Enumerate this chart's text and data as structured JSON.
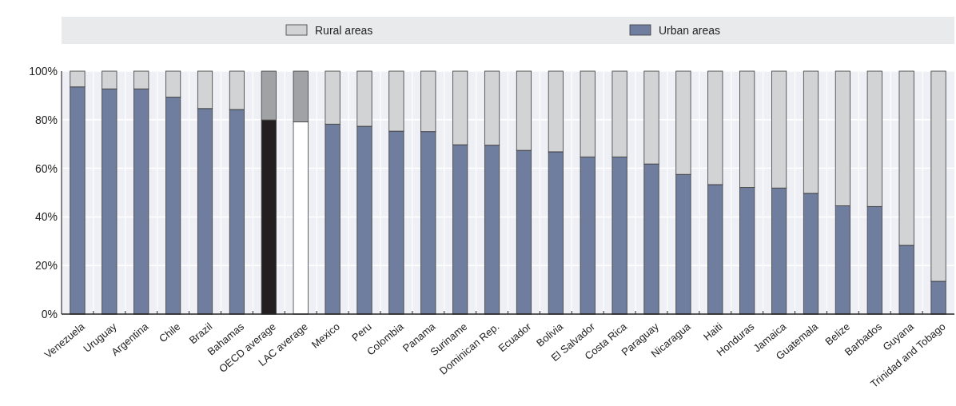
{
  "chart_data": {
    "type": "bar",
    "stacked": true,
    "legend": "top",
    "grid": true,
    "categories": [
      "Venezuela",
      "Uruguay",
      "Argentina",
      "Chile",
      "Brazil",
      "Bahamas",
      "OECD average",
      "LAC average",
      "Mexico",
      "Peru",
      "Colombia",
      "Panama",
      "Suriname",
      "Dominican Rep.",
      "Ecuador",
      "Bolivia",
      "El Salvador",
      "Costa Rica",
      "Paraguay",
      "Nicaragua",
      "Haiti",
      "Honduras",
      "Jamaica",
      "Guatemala",
      "Belize",
      "Barbados",
      "Guyana",
      "Trinidad and Tobago"
    ],
    "series": [
      {
        "name": "Urban areas",
        "color": "#6f7d9f",
        "colors": [
          "#6f7d9f",
          "#6f7d9f",
          "#6f7d9f",
          "#6f7d9f",
          "#6f7d9f",
          "#6f7d9f",
          "#231f20",
          "#ffffff",
          "#6f7d9f",
          "#6f7d9f",
          "#6f7d9f",
          "#6f7d9f",
          "#6f7d9f",
          "#6f7d9f",
          "#6f7d9f",
          "#6f7d9f",
          "#6f7d9f",
          "#6f7d9f",
          "#6f7d9f",
          "#6f7d9f",
          "#6f7d9f",
          "#6f7d9f",
          "#6f7d9f",
          "#6f7d9f",
          "#6f7d9f",
          "#6f7d9f",
          "#6f7d9f",
          "#6f7d9f"
        ],
        "values": [
          93.5,
          92.7,
          92.7,
          89.3,
          84.6,
          84.2,
          79.9,
          79.1,
          78.2,
          77.3,
          75.3,
          75.1,
          69.7,
          69.5,
          67.4,
          66.8,
          64.7,
          64.7,
          61.8,
          57.5,
          53.3,
          52.1,
          51.9,
          49.7,
          44.6,
          44.3,
          28.3,
          13.5
        ]
      },
      {
        "name": "Rural areas",
        "color": "#d2d3d5",
        "colors": [
          "#d2d3d5",
          "#d2d3d5",
          "#d2d3d5",
          "#d2d3d5",
          "#d2d3d5",
          "#d2d3d5",
          "#a0a2a5",
          "#a0a2a5",
          "#d2d3d5",
          "#d2d3d5",
          "#d2d3d5",
          "#d2d3d5",
          "#d2d3d5",
          "#d2d3d5",
          "#d2d3d5",
          "#d2d3d5",
          "#d2d3d5",
          "#d2d3d5",
          "#d2d3d5",
          "#d2d3d5",
          "#d2d3d5",
          "#d2d3d5",
          "#d2d3d5",
          "#d2d3d5",
          "#d2d3d5",
          "#d2d3d5",
          "#d2d3d5",
          "#d2d3d5"
        ],
        "values": [
          6.5,
          7.3,
          7.3,
          10.7,
          15.4,
          15.8,
          20.1,
          20.9,
          21.8,
          22.7,
          24.7,
          24.9,
          30.3,
          30.5,
          32.6,
          33.2,
          35.3,
          35.3,
          38.2,
          42.5,
          46.7,
          47.9,
          48.1,
          50.3,
          55.4,
          55.7,
          71.7,
          86.5
        ]
      }
    ],
    "ylim": [
      0,
      100
    ],
    "yticks": [
      {
        "value": 0,
        "label": "0%"
      },
      {
        "value": 20,
        "label": "20%"
      },
      {
        "value": 40,
        "label": "40%"
      },
      {
        "value": 60,
        "label": "60%"
      },
      {
        "value": 80,
        "label": "80%"
      },
      {
        "value": 100,
        "label": "100%"
      }
    ]
  }
}
